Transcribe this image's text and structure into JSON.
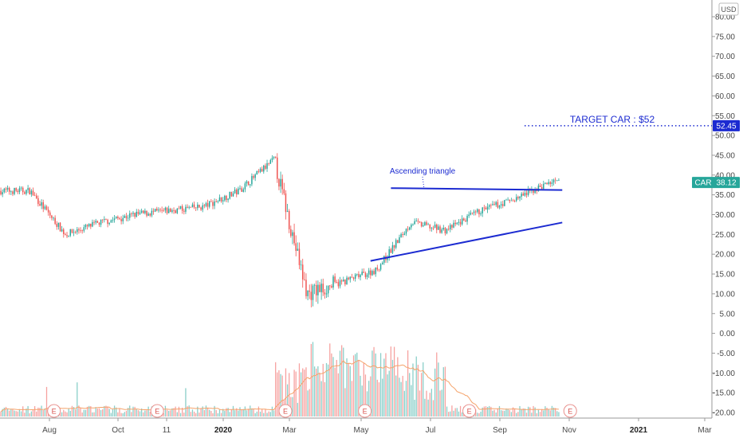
{
  "currency": "USD",
  "colors": {
    "up": "#26a69a",
    "down": "#ef5350",
    "drawing": "#1c2bd1",
    "ma": "#f5a36a",
    "ticker_tag": "#26a69a",
    "target_tag": "#1c2bd1"
  },
  "price_axis": {
    "ticks": [
      "80.00",
      "75.00",
      "70.00",
      "65.00",
      "60.00",
      "55.00",
      "50.00",
      "45.00",
      "40.00",
      "35.00",
      "30.00",
      "25.00",
      "20.00",
      "15.00",
      "10.00",
      "5.00",
      "0.00",
      "-5.00",
      "-10.00",
      "-15.00",
      "-20.00"
    ]
  },
  "time_axis": {
    "ticks": [
      {
        "label": "Aug",
        "bold": false
      },
      {
        "label": "Oct",
        "bold": false
      },
      {
        "label": "11",
        "bold": false
      },
      {
        "label": "2020",
        "bold": true
      },
      {
        "label": "Mar",
        "bold": false
      },
      {
        "label": "May",
        "bold": false
      },
      {
        "label": "Jul",
        "bold": false
      },
      {
        "label": "Sep",
        "bold": false
      },
      {
        "label": "Nov",
        "bold": false
      },
      {
        "label": "2021",
        "bold": true
      },
      {
        "label": "Mar",
        "bold": false
      }
    ]
  },
  "annotations": {
    "pattern_label": "Ascending triangle",
    "target_label": "TARGET CAR : $52",
    "target_price": "52.45",
    "ticker": "CAR",
    "last_price": "38.12"
  },
  "earnings_marker": "E",
  "chart_data": {
    "type": "candlestick",
    "symbol": "CAR",
    "currency": "USD",
    "ylim": [
      -22,
      82
    ],
    "series": [
      {
        "name": "CAR",
        "x": [
          "2019-07",
          "2019-08",
          "2019-09",
          "2019-10",
          "2019-11",
          "2019-12",
          "2020-01",
          "2020-02",
          "2020-03",
          "2020-04",
          "2020-05",
          "2020-06",
          "2020-07",
          "2020-08",
          "2020-09",
          "2020-10"
        ],
        "close": [
          36,
          25,
          28,
          30,
          31,
          32,
          36,
          44,
          10,
          13,
          16,
          28,
          26,
          31,
          34,
          38.12
        ]
      }
    ],
    "volume_moving_average": true,
    "lines": [
      {
        "name": "resistance",
        "points": [
          [
            "2020-05-28",
            36.7
          ],
          [
            "2020-10-26",
            36.2
          ]
        ]
      },
      {
        "name": "support",
        "points": [
          [
            "2020-05-10",
            18.3
          ],
          [
            "2020-10-26",
            28
          ]
        ]
      },
      {
        "name": "target",
        "value": 52.45
      }
    ],
    "earnings_dates": [
      "2019-08-05",
      "2019-11-04",
      "2020-02-25",
      "2020-05-05",
      "2020-08-05",
      "2020-11-02"
    ]
  }
}
